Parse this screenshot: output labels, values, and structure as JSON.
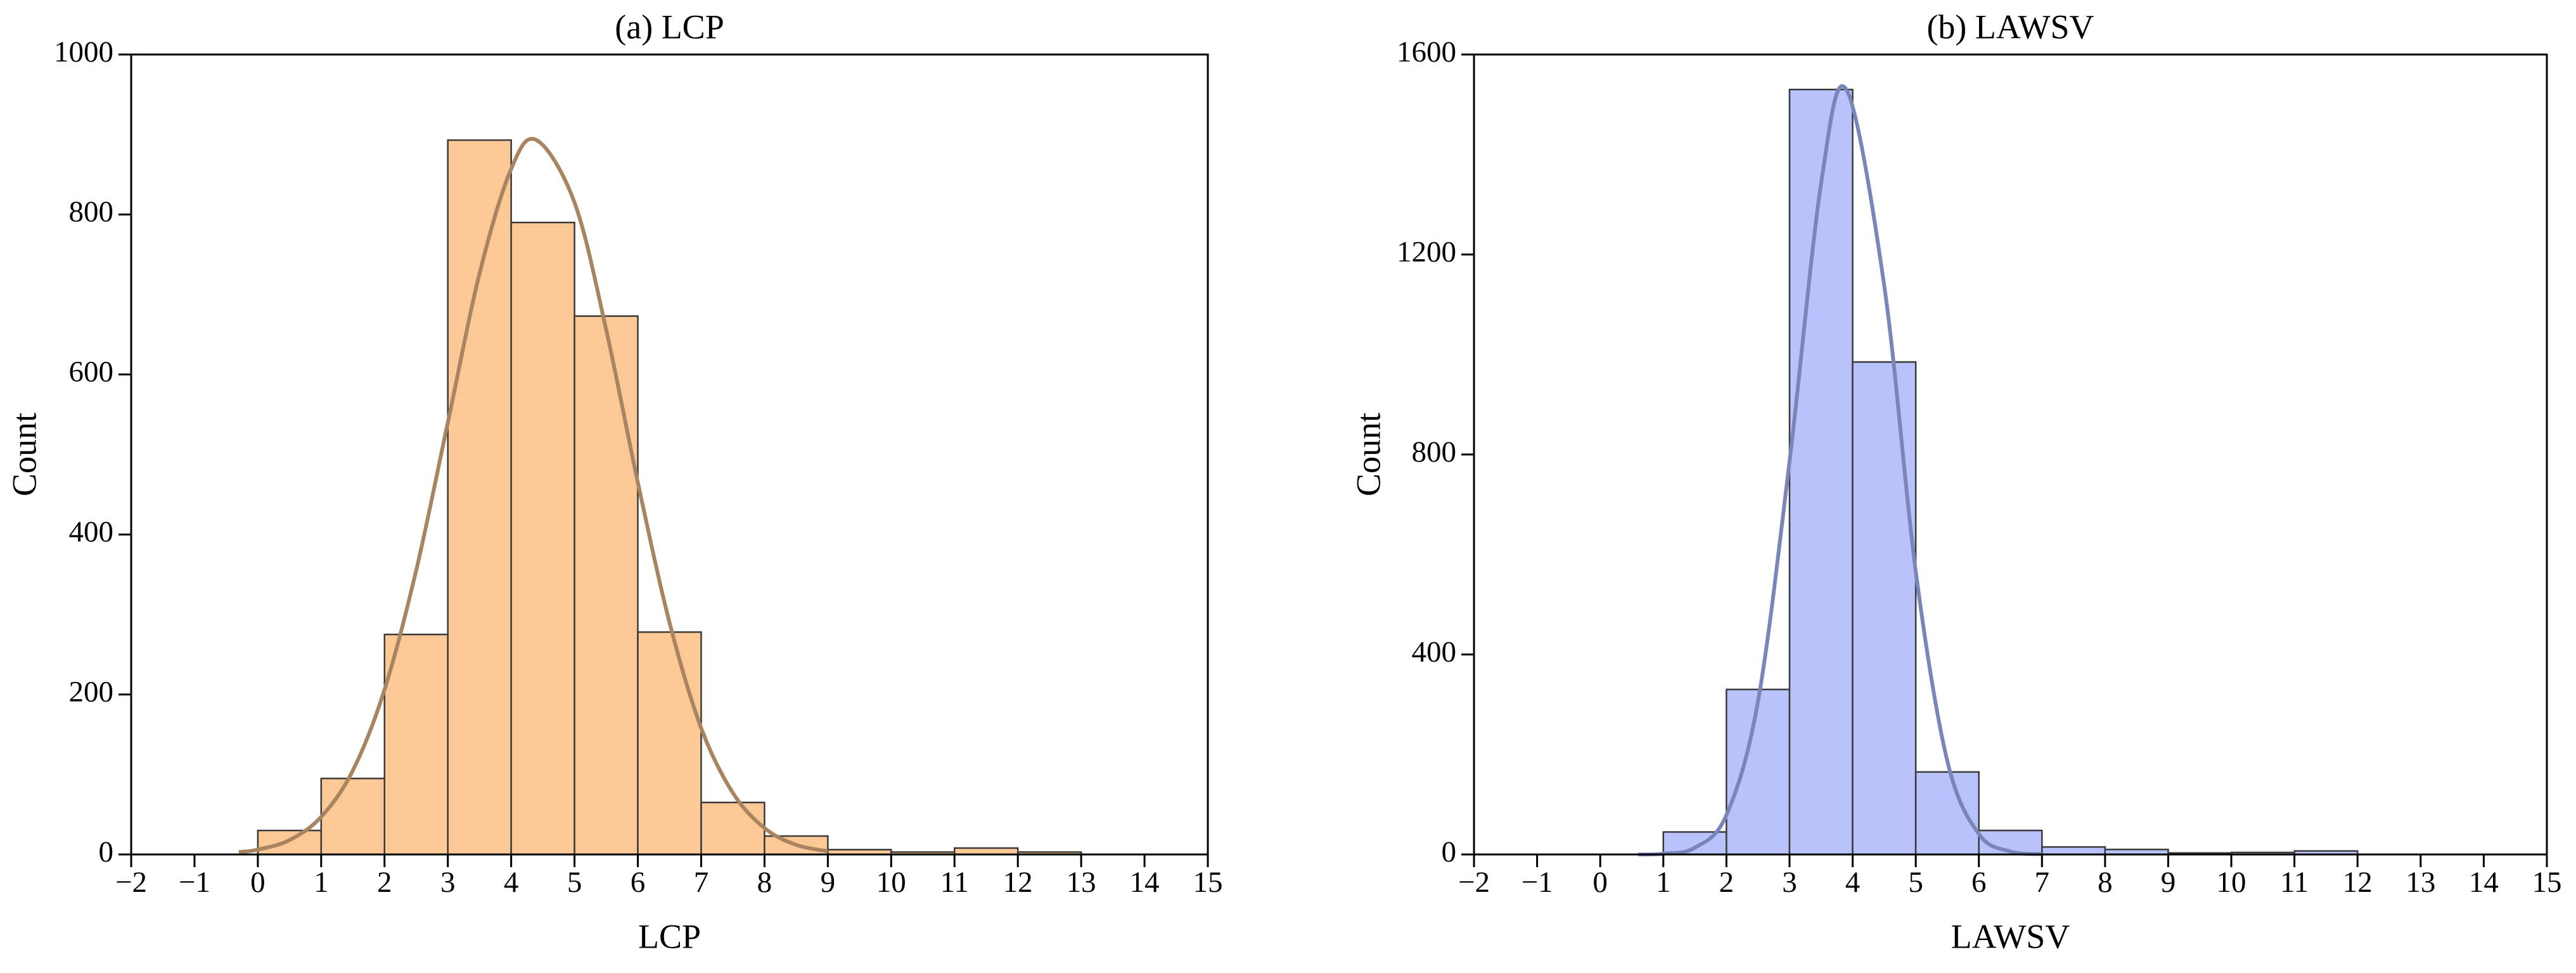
{
  "chart_data": [
    {
      "type": "histogram",
      "title": "(a) LCP",
      "xlabel": "LCP",
      "ylabel": "Count",
      "bins": [
        0,
        1,
        2,
        3,
        4,
        5,
        6,
        7,
        8,
        9,
        10,
        11,
        12,
        13
      ],
      "values": [
        30,
        95,
        275,
        893,
        790,
        673,
        278,
        65,
        23,
        6,
        3,
        8,
        3
      ],
      "color": "#fcc896",
      "edgecolor": "#3a3a3a",
      "fit": {
        "x": [
          -0.3,
          0,
          0.5,
          1,
          1.5,
          2,
          2.5,
          3,
          3.5,
          4,
          4.4,
          5,
          5.5,
          6,
          6.5,
          7,
          7.5,
          8,
          8.5,
          9
        ],
        "values": [
          3,
          6,
          18,
          47,
          105,
          206,
          355,
          540,
          726,
          857,
          893,
          815,
          656,
          465,
          290,
          158,
          77,
          33,
          12,
          4
        ],
        "color": "#a98460"
      },
      "xlim": [
        -2,
        15
      ],
      "xticks": [
        {
          "value": -2,
          "label": "−2"
        },
        {
          "value": -1,
          "label": "−1"
        },
        0,
        1,
        2,
        3,
        4,
        5,
        6,
        7,
        8,
        9,
        10,
        11,
        12,
        13,
        14,
        15
      ],
      "ylim": [
        0,
        1000
      ],
      "yticks": [
        0,
        200,
        400,
        600,
        800,
        1000
      ]
    },
    {
      "type": "histogram",
      "title": "(b) LAWSV",
      "xlabel": "LAWSV",
      "ylabel": "Count",
      "bins": [
        1,
        2,
        3,
        4,
        5,
        6,
        7,
        8,
        9,
        10,
        11,
        12
      ],
      "values": [
        45,
        330,
        1530,
        985,
        165,
        48,
        15,
        10,
        3,
        4,
        7
      ],
      "color": "#b9c2fb",
      "edgecolor": "#3a3a3a",
      "fit": {
        "x": [
          0.6,
          1,
          1.5,
          2,
          2.5,
          3,
          3.5,
          3.9,
          4.5,
          5,
          5.5,
          6,
          6.5,
          7
        ],
        "values": [
          0,
          1.5,
          13.5,
          79,
          306,
          786,
          1342,
          1530,
          1138,
          566,
          187,
          41,
          6,
          0.6
        ],
        "color": "#7a86b8"
      },
      "xlim": [
        -2,
        15
      ],
      "xticks": [
        {
          "value": -2,
          "label": "−2"
        },
        {
          "value": -1,
          "label": "−1"
        },
        0,
        1,
        2,
        3,
        4,
        5,
        6,
        7,
        8,
        9,
        10,
        11,
        12,
        13,
        14,
        15
      ],
      "ylim": [
        0,
        1600
      ],
      "yticks": [
        0,
        400,
        800,
        1200,
        1600
      ]
    }
  ]
}
